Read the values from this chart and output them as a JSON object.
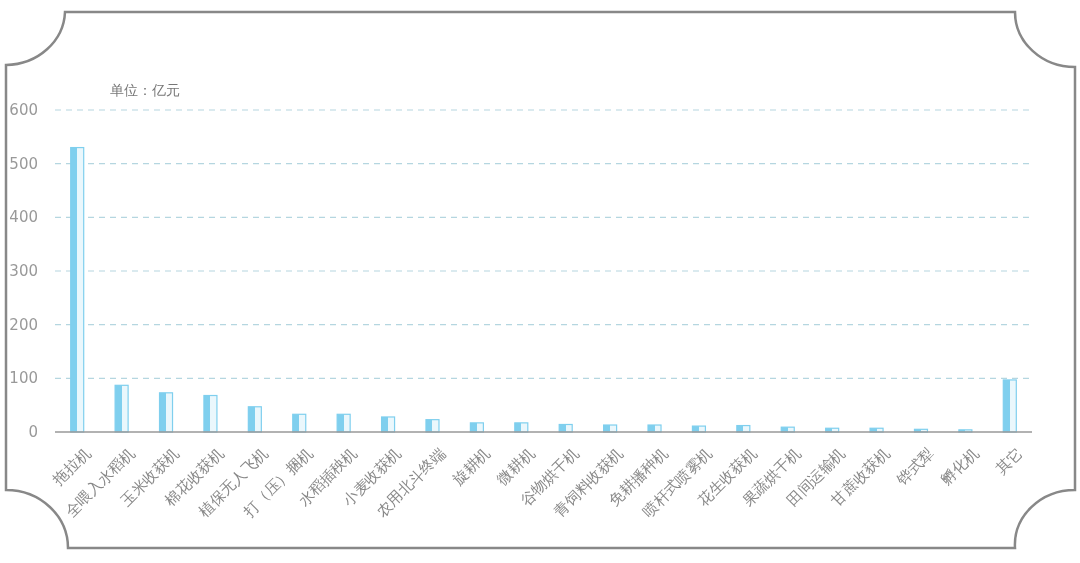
{
  "chart_data": {
    "type": "bar",
    "ylabel": "单位：亿元",
    "categories": [
      "拖拉机",
      "全喂入水稻机",
      "玉米收获机",
      "棉花收获机",
      "植保无人飞机",
      "打（压）捆机",
      "水稻插秧机",
      "小麦收获机",
      "农用北斗终端",
      "旋耕机",
      "微耕机",
      "谷物烘干机",
      "青饲料收获机",
      "免耕播种机",
      "喷杆式喷雾机",
      "花生收获机",
      "果蔬烘干机",
      "田间运输机",
      "甘蔗收获机",
      "铧式犁",
      "孵化机",
      "其它"
    ],
    "values": [
      530,
      87,
      73,
      68,
      47,
      33,
      33,
      28,
      23,
      17,
      17,
      14,
      13,
      13,
      11,
      12,
      9,
      7,
      7,
      5,
      4,
      97
    ],
    "color": "#7fcfee",
    "ylim": [
      0,
      600
    ],
    "yticks": [
      0,
      100,
      200,
      300,
      400,
      500,
      600
    ],
    "grid": "y"
  }
}
